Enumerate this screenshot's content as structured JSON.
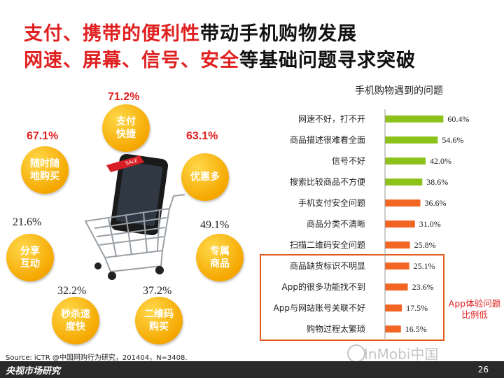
{
  "title": {
    "line1_red": "支付、携带的便利性",
    "line1_dark": "带动手机购物发展",
    "line2_red": "网速、屏幕、信号、安全",
    "line2_dark": "等基础问题寻求突破"
  },
  "bubbles": [
    {
      "label": "支付\n快捷",
      "value": "71.2%",
      "style": "bold"
    },
    {
      "label": "随时随\n地购买",
      "value": "67.1%",
      "style": "bold"
    },
    {
      "label": "优惠多",
      "value": "63.1%",
      "style": "bold"
    },
    {
      "label": "分享\n互动",
      "value": "21.6%",
      "style": "plain"
    },
    {
      "label": "专属\n商品",
      "value": "49.1%",
      "style": "plain"
    },
    {
      "label": "秒杀速\n度快",
      "value": "32.2%",
      "style": "plain"
    },
    {
      "label": "二维码\n购买",
      "value": "37.2%",
      "style": "plain"
    }
  ],
  "cart": {
    "tag": "SALE"
  },
  "chart_data": {
    "type": "bar",
    "orientation": "horizontal",
    "title": "手机购物遇到的问题",
    "categories": [
      "网速不好，打不开",
      "商品描述很难看全面",
      "信号不好",
      "搜索比较商品不方便",
      "手机支付安全问题",
      "商品分类不清晰",
      "扫描二维码安全问题",
      "商品缺货标识不明显",
      "App的很多功能找不到",
      "App与网站账号关联不好",
      "购物过程太繁琐"
    ],
    "values": [
      60.4,
      54.6,
      42.0,
      38.6,
      36.6,
      31.0,
      25.8,
      25.1,
      23.6,
      17.5,
      16.5
    ],
    "value_labels": [
      "60.4%",
      "54.6%",
      "42.0%",
      "38.6%",
      "36.6%",
      "31.0%",
      "25.8%",
      "25.1%",
      "23.6%",
      "17.5%",
      "16.5%"
    ],
    "colors": [
      "#8cc219",
      "#8cc219",
      "#8cc219",
      "#8cc219",
      "#f26522",
      "#f26522",
      "#f26522",
      "#f26522",
      "#f26522",
      "#f26522",
      "#f26522"
    ],
    "xlim": [
      0,
      65
    ],
    "grid": false,
    "highlight_box": {
      "from_index": 7,
      "to_index": 10,
      "color": "#e45a1f"
    },
    "annotation": "App体验问题\n比例低"
  },
  "source": "Source: iCTR @中国网购行为研究，201404，N=3408.",
  "footer": {
    "left": "央视市场研究",
    "page": "26"
  },
  "watermark": "InMobi中国"
}
